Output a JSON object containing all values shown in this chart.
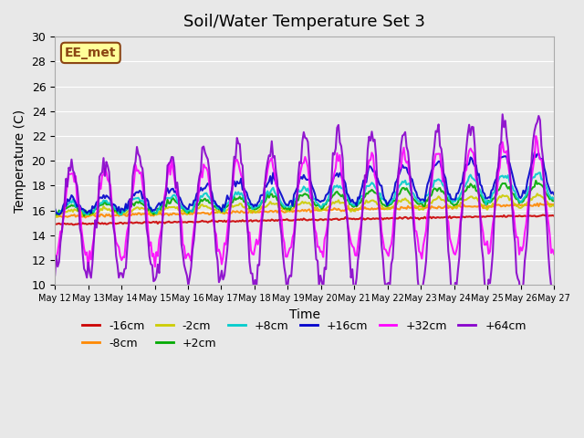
{
  "title": "Soil/Water Temperature Set 3",
  "xlabel": "Time",
  "ylabel": "Temperature (C)",
  "ylim": [
    10,
    30
  ],
  "n_days": 15,
  "background_color": "#e8e8e8",
  "plot_bg_color": "#e8e8e8",
  "annotation_text": "EE_met",
  "annotation_box_color": "#ffff99",
  "annotation_border_color": "#8b4513",
  "series": {
    "-16cm": {
      "color": "#cc0000",
      "linewidth": 1.5
    },
    "-8cm": {
      "color": "#ff8800",
      "linewidth": 1.5
    },
    "-2cm": {
      "color": "#cccc00",
      "linewidth": 1.5
    },
    "+2cm": {
      "color": "#00aa00",
      "linewidth": 1.5
    },
    "+8cm": {
      "color": "#00cccc",
      "linewidth": 1.5
    },
    "+16cm": {
      "color": "#0000cc",
      "linewidth": 1.5
    },
    "+32cm": {
      "color": "#ff00ff",
      "linewidth": 1.5
    },
    "+64cm": {
      "color": "#8800cc",
      "linewidth": 1.5
    }
  },
  "tick_labels": [
    "May 12",
    "May 13",
    "May 14",
    "May 15",
    "May 16",
    "May 17",
    "May 18",
    "May 19",
    "May 20",
    "May 21",
    "May 22",
    "May 23",
    "May 24",
    "May 25",
    "May 26",
    "May 27"
  ]
}
